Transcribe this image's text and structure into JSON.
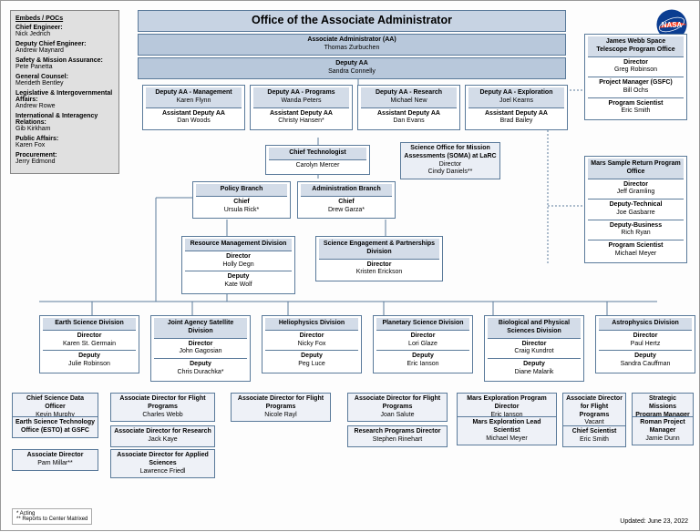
{
  "org_title": "Office of the Associate Administrator",
  "aa": {
    "role": "Associate Administrator (AA)",
    "name": "Thomas Zurbuchen"
  },
  "daa": {
    "role": "Deputy AA",
    "name": "Sandra Connelly"
  },
  "cols": [
    {
      "r1": "Deputy AA - Management",
      "n1": "Karen Flynn",
      "r2": "Assistant Deputy AA",
      "n2": "Dan Woods"
    },
    {
      "r1": "Deputy AA - Programs",
      "n1": "Wanda Peters",
      "r2": "Assistant Deputy AA",
      "n2": "Christy Hansen*"
    },
    {
      "r1": "Deputy AA - Research",
      "n1": "Michael New",
      "r2": "Assistant Deputy AA",
      "n2": "Dan Evans"
    },
    {
      "r1": "Deputy AA - Exploration",
      "n1": "Joel Kearns",
      "r2": "Assistant Deputy AA",
      "n2": "Brad Bailey"
    }
  ],
  "chief_tech": {
    "role": "Chief Technologist",
    "name": "Carolyn Mercer"
  },
  "soma": {
    "t1": "Science Office for Mission Assessments (SOMA) at LaRC",
    "t2": "Director",
    "t3": "Cindy Daniels**"
  },
  "policy": {
    "h": "Policy Branch",
    "r": "Chief",
    "n": "Ursula Rick*"
  },
  "admin": {
    "h": "Administration Branch",
    "r": "Chief",
    "n": "Drew Garza*"
  },
  "rmd": {
    "h": "Resource Management Division",
    "r1": "Director",
    "n1": "Holly Degn",
    "r2": "Deputy",
    "n2": "Kate Wolf"
  },
  "sepd": {
    "h": "Science Engagement & Partnerships Division",
    "r1": "Director",
    "n1": "Kristen Erickson"
  },
  "jwst": {
    "h": "James Webb Space Telescope Program Office",
    "rows": [
      [
        "Director",
        "Greg Robinson"
      ],
      [
        "Project Manager (GSFC)",
        "Bill Ochs"
      ],
      [
        "Program Scientist",
        "Eric Smith"
      ]
    ]
  },
  "msr": {
    "h": "Mars Sample Return Program Office",
    "rows": [
      [
        "Director",
        "Jeff Gramling"
      ],
      [
        "Deputy-Technical",
        "Joe Gasbarre"
      ],
      [
        "Deputy-Business",
        "Rich Ryan"
      ],
      [
        "Program Scientist",
        "Michael Meyer"
      ]
    ]
  },
  "divisions": [
    {
      "h": "Earth Science Division",
      "d": "Karen St. Germain",
      "dp": "Julie Robinson"
    },
    {
      "h": "Joint Agency Satellite Division",
      "d": "John Gagosian",
      "dp": "Chris Durachka*"
    },
    {
      "h": "Heliophysics Division",
      "d": "Nicky Fox",
      "dp": "Peg Luce"
    },
    {
      "h": "Planetary Science Division",
      "d": "Lori Glaze",
      "dp": "Eric Ianson"
    },
    {
      "h": "Biological and Physical Sciences Division",
      "d": "Craig Kundrot",
      "dp": "Diane Malarik"
    },
    {
      "h": "Astrophysics Division",
      "d": "Paul Hertz",
      "dp": "Sandra Cauffman"
    }
  ],
  "earth_extra": [
    {
      "r": "Chief Science Data Officer",
      "n": "Kevin Murphy"
    },
    {
      "r": "Earth Science Technology Office (ESTO) at GSFC",
      "n": ""
    },
    {
      "r": "Associate Director",
      "n": "Pam Millar**"
    }
  ],
  "jasd_extra": [
    {
      "r": "Associate Director for Flight Programs",
      "n": "Charles Webb"
    },
    {
      "r": "Associate Director for Research",
      "n": "Jack Kaye"
    },
    {
      "r": "Associate Director for Applied Sciences",
      "n": "Lawrence Friedl"
    }
  ],
  "helio_extra": [
    {
      "r": "Associate Director for Flight Programs",
      "n": "Nicole Rayl"
    }
  ],
  "plan_extra": [
    {
      "r": "Associate Director for Flight Programs",
      "n": "Joan Salute"
    },
    {
      "r": "Research Programs Director",
      "n": "Stephen Rinehart"
    }
  ],
  "bps_extra": [
    {
      "r": "Mars Exploration Program Director",
      "n": "Eric Ianson"
    },
    {
      "r": "Mars Exploration Lead Scientist",
      "n": "Michael Meyer"
    }
  ],
  "astro_extra1": [
    {
      "r": "Associate Director for Flight Programs",
      "n": "Vacant"
    },
    {
      "r": "Chief Scientist",
      "n": "Eric Smith"
    }
  ],
  "astro_extra2": [
    {
      "r": "Strategic Missions Program Manager",
      "n": "Vacant"
    },
    {
      "r": "Roman Project Manager",
      "n": "Jamie Dunn"
    }
  ],
  "embeds_title": "Embeds / POCs",
  "embeds": [
    [
      "Chief Engineer:",
      "Nick Jedrich"
    ],
    [
      "Deputy Chief Engineer:",
      "Andrew Maynard"
    ],
    [
      "Safety & Mission Assurance:",
      "Pete Panetta"
    ],
    [
      "General Counsel:",
      "Merideth Bentley"
    ],
    [
      "Legislative & Intergovernmental Affairs:",
      "Andrew Rowe"
    ],
    [
      "International & Interagency Relations:",
      "Gib Kirkham"
    ],
    [
      "Public Affairs:",
      "Karen Fox"
    ],
    [
      "Procurement:",
      "Jerry Edmond"
    ]
  ],
  "legend": [
    "*   Acting",
    "** Reports to Center Matrixed"
  ],
  "updated": "Updated: June 23, 2022",
  "colors": {
    "hdr": "#d3dce8",
    "hdr2": "#b8c8db",
    "border": "#5a7a9a",
    "embeds_bg": "#e0e0e0"
  }
}
